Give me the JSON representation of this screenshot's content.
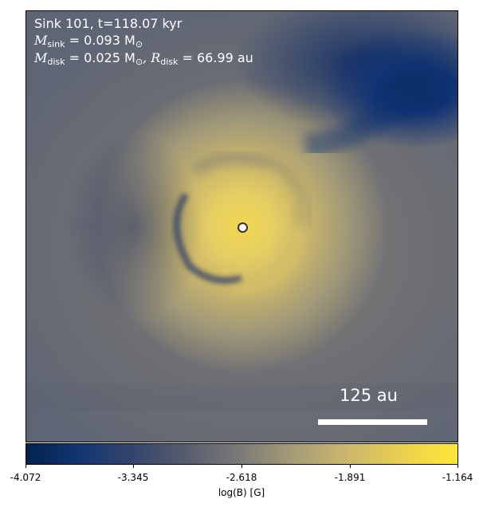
{
  "info": {
    "line1": "Sink 101, t=118.07 kyr",
    "msink_symbol": "M",
    "msink_sub": "sink",
    "msink_value": " = 0.093 M",
    "msink_sun": "⊙",
    "mdisk_symbol": "M",
    "mdisk_sub": "disk",
    "mdisk_value": " = 0.025 M",
    "mdisk_sun": "⊙",
    "rdisk_symbol": ", R",
    "rdisk_sub": "disk",
    "rdisk_value": " = 66.99 au"
  },
  "scale_bar": {
    "label": "125 au"
  },
  "colorbar": {
    "label": "log(B) [G]",
    "ticks": [
      "-4.072",
      "-3.345",
      "-2.618",
      "-1.891",
      "-1.164"
    ],
    "colormap": "cividis"
  }
}
